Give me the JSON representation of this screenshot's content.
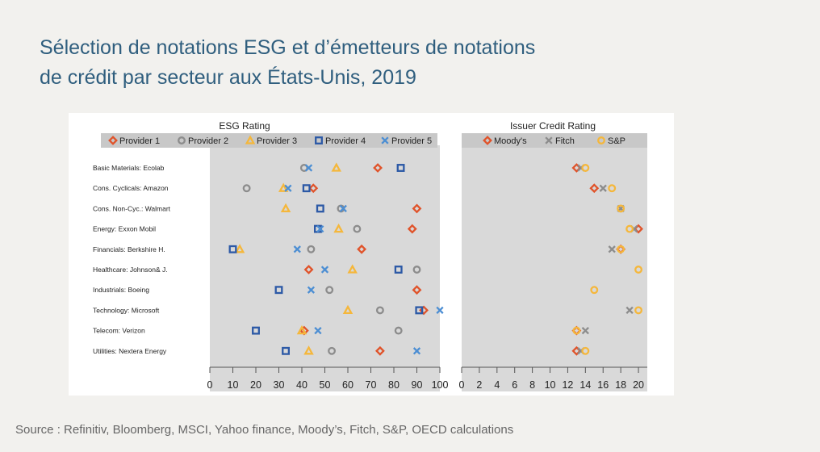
{
  "title": {
    "line1": "Sélection de notations ESG et d’émetteurs de notations",
    "line2": "de crédit par secteur aux États-Unis, 2019"
  },
  "source": "Source : Refinitiv, Bloomberg, MSCI, Yahoo finance, Moody’s, Fitch, S&P, OECD calculations",
  "colors": {
    "background": "#f2f1ee",
    "plot_bg": "#d9d9d9",
    "title": "#2f5e7e",
    "orange": "#e0532a",
    "grey": "#8c8c8c",
    "yellow": "#f5b73b",
    "blue": "#2c59a6",
    "lightblue": "#4c8ed3"
  },
  "chart_data": [
    {
      "type": "scatter",
      "title": "ESG Rating",
      "categories": [
        "Basic Materials: Ecolab",
        "Cons. Cyclicals: Amazon",
        "Cons. Non-Cyc.: Walmart",
        "Energy: Exxon Mobil",
        "Financials: Berkshire H.",
        "Healthcare: Johnson& J.",
        "Industrials: Boeing",
        "Technology: Microsoft",
        "Telecom: Verizon",
        "Utilities: Nextera Energy"
      ],
      "xlim": [
        0,
        100
      ],
      "xticks": [
        0,
        10,
        20,
        30,
        40,
        50,
        60,
        70,
        80,
        90,
        100
      ],
      "legend_position": "top",
      "series": [
        {
          "name": "Provider 1",
          "marker": "diamond",
          "color": "#e0532a",
          "values": [
            73,
            45,
            90,
            88,
            66,
            43,
            90,
            93,
            41,
            74
          ]
        },
        {
          "name": "Provider 2",
          "marker": "circle",
          "color": "#8c8c8c",
          "values": [
            41,
            16,
            57,
            64,
            44,
            90,
            52,
            74,
            82,
            53
          ]
        },
        {
          "name": "Provider 3",
          "marker": "triangle",
          "color": "#f5b73b",
          "values": [
            55,
            32,
            33,
            56,
            13,
            62,
            null,
            60,
            40,
            43
          ]
        },
        {
          "name": "Provider 4",
          "marker": "square",
          "color": "#2c59a6",
          "values": [
            83,
            42,
            48,
            47,
            10,
            82,
            30,
            91,
            20,
            33
          ]
        },
        {
          "name": "Provider 5",
          "marker": "x",
          "color": "#4c8ed3",
          "values": [
            43,
            34,
            58,
            48,
            38,
            50,
            44,
            100,
            47,
            90
          ]
        }
      ]
    },
    {
      "type": "scatter",
      "title": "Issuer Credit Rating",
      "xlim": [
        0,
        21
      ],
      "xticks": [
        0,
        2,
        4,
        6,
        8,
        10,
        12,
        14,
        16,
        18,
        20
      ],
      "legend_position": "top",
      "series": [
        {
          "name": "Moody's",
          "marker": "diamond",
          "color": "#e0532a",
          "values": [
            13,
            15,
            null,
            20,
            18,
            null,
            null,
            null,
            13,
            13
          ]
        },
        {
          "name": "Fitch",
          "marker": "x",
          "color": "#8c8c8c",
          "values": [
            13.5,
            16,
            18,
            19.5,
            17,
            null,
            null,
            19,
            14,
            13.5
          ]
        },
        {
          "name": "S&P",
          "marker": "circle",
          "color": "#f5b73b",
          "values": [
            14,
            17,
            18,
            19,
            18,
            20,
            15,
            20,
            13,
            14
          ]
        }
      ]
    }
  ]
}
